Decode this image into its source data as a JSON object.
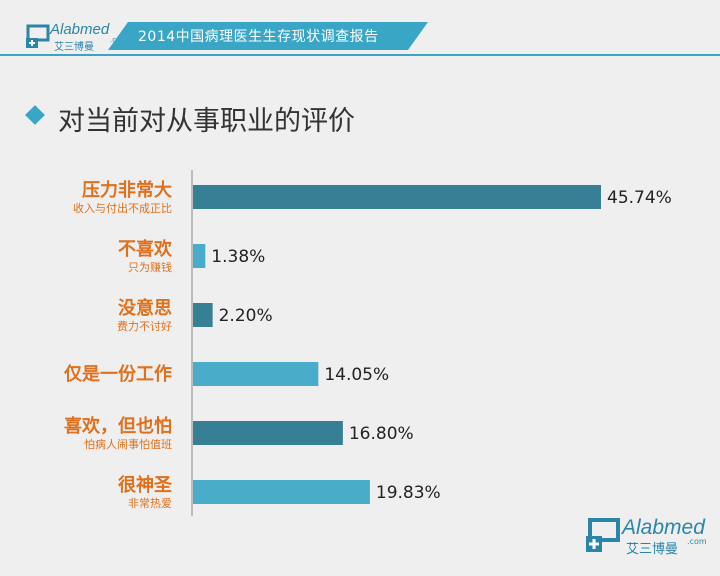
{
  "header": {
    "logo_brand": "Alabmed",
    "logo_cn": "艾三博曼",
    "logo_suffix": ".com",
    "title": "2014中国病理医生生存现状调查报告"
  },
  "section_title": "对当前对从事职业的评价",
  "colors": {
    "accent": "#3aa6c6",
    "bar_dark": "#367f95",
    "bar_light": "#49acc8",
    "label": "#e0701c"
  },
  "chart_data": {
    "type": "bar",
    "orientation": "horizontal",
    "categories": [
      {
        "label": "压力非常大",
        "sublabel": "收入与付出不成正比"
      },
      {
        "label": "不喜欢",
        "sublabel": "只为赚钱"
      },
      {
        "label": "没意思",
        "sublabel": "费力不讨好"
      },
      {
        "label": "仅是一份工作",
        "sublabel": ""
      },
      {
        "label": "喜欢，但也怕",
        "sublabel": "怕病人闹事怕值班"
      },
      {
        "label": "很神圣",
        "sublabel": "非常热爱"
      }
    ],
    "values": [
      45.74,
      1.38,
      2.2,
      14.05,
      16.8,
      19.83
    ],
    "value_labels": [
      "45.74%",
      "1.38%",
      "2.20%",
      "14.05%",
      "16.80%",
      "19.83%"
    ],
    "bar_colors": [
      "#367f95",
      "#49acc8",
      "#367f95",
      "#49acc8",
      "#367f95",
      "#49acc8"
    ],
    "unit": "%",
    "xlim": [
      0,
      45.74
    ]
  },
  "footer_logo": {
    "brand": "Alabmed",
    "cn": "艾三博曼",
    "suffix": ".com"
  }
}
